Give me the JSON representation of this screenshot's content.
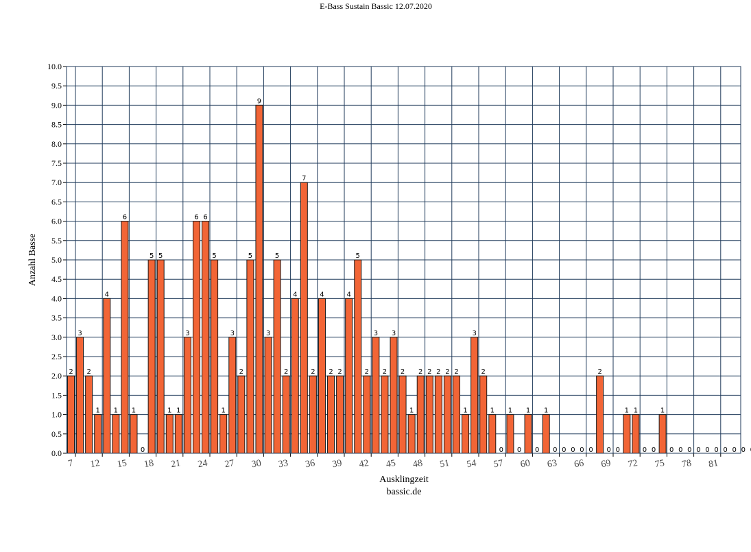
{
  "chart_data": {
    "type": "bar",
    "title": "E-Bass Sustain Bassic 12.07.2020",
    "xlabel": "Ausklingzeit",
    "xlabel2": "bassic.de",
    "ylabel": "Anzahl Basse",
    "ylim": [
      0,
      10
    ],
    "ytick_step": 0.5,
    "grid": true,
    "bar_color": "#f26536",
    "grid_color": "#1f3a5a",
    "x": [
      7,
      8,
      9,
      10,
      11,
      12,
      13,
      14,
      15,
      16,
      17,
      18,
      19,
      20,
      21,
      22,
      23,
      24,
      25,
      26,
      27,
      28,
      29,
      30,
      31,
      32,
      33,
      34,
      35,
      36,
      37,
      38,
      39,
      40,
      41,
      42,
      43,
      44,
      45,
      46,
      47,
      48,
      49,
      50,
      51,
      52,
      53,
      54,
      55,
      56,
      57,
      58,
      59,
      60,
      61,
      62,
      63,
      64,
      65,
      66,
      67,
      68,
      69,
      70,
      71,
      72,
      73,
      74,
      75,
      76,
      77,
      78,
      79,
      80,
      81,
      82,
      83
    ],
    "values": [
      2,
      3,
      2,
      1,
      4,
      1,
      6,
      1,
      0,
      5,
      5,
      1,
      1,
      3,
      6,
      6,
      5,
      1,
      3,
      2,
      5,
      9,
      3,
      5,
      2,
      4,
      7,
      2,
      4,
      2,
      2,
      4,
      5,
      2,
      3,
      2,
      3,
      2,
      1,
      2,
      2,
      2,
      2,
      2,
      1,
      3,
      2,
      1,
      0,
      1,
      0,
      1,
      0,
      1,
      0,
      0,
      0,
      0,
      0,
      2,
      0,
      0,
      1,
      1,
      0,
      0,
      1,
      0,
      0,
      0,
      0,
      0,
      0,
      0,
      0,
      0,
      0
    ],
    "xticks": [
      "7",
      "12",
      "15",
      "18",
      "21",
      "24",
      "27",
      "30",
      "33",
      "36",
      "39",
      "42",
      "45",
      "48",
      "51",
      "54",
      "57",
      "60",
      "63",
      "66",
      "69",
      "72",
      "75",
      "78",
      "81"
    ]
  }
}
